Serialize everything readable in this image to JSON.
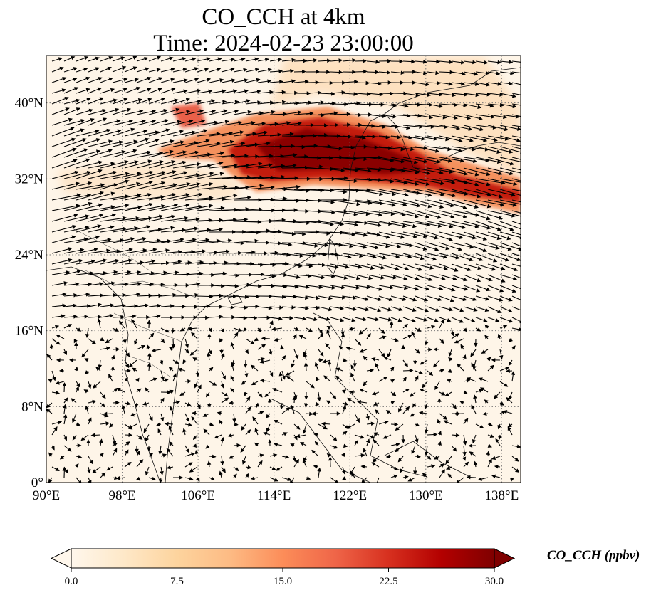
{
  "title": {
    "line1": "CO_CCH at 4km",
    "line2": "Time: 2024-02-23 23:00:00"
  },
  "map": {
    "lon_range": [
      90,
      140
    ],
    "lat_range": [
      0,
      45
    ],
    "lon_ticks": [
      {
        "value": 90,
        "label": "90°E"
      },
      {
        "value": 98,
        "label": "98°E"
      },
      {
        "value": 106,
        "label": "106°E"
      },
      {
        "value": 114,
        "label": "114°E"
      },
      {
        "value": 122,
        "label": "122°E"
      },
      {
        "value": 130,
        "label": "130°E"
      },
      {
        "value": 138,
        "label": "138°E"
      }
    ],
    "lat_ticks": [
      {
        "value": 0,
        "label": "0°"
      },
      {
        "value": 8,
        "label": "8°N"
      },
      {
        "value": 16,
        "label": "16°N"
      },
      {
        "value": 24,
        "label": "24°N"
      },
      {
        "value": 32,
        "label": "32°N"
      },
      {
        "value": 40,
        "label": "40°N"
      }
    ],
    "gridlines": "dotted",
    "field_variable": "CO_CCH",
    "wind_vectors": true
  },
  "colorbar": {
    "label": "CO_CCH (ppbv)",
    "min": 0.0,
    "max": 30.0,
    "extend": "both",
    "colormap": "OrRd",
    "colors": [
      "#fff7ec",
      "#fee8c8",
      "#fdd49e",
      "#fdbb84",
      "#fc8d59",
      "#ef6548",
      "#d7301f",
      "#b30000",
      "#7f0000"
    ],
    "ticks": [
      {
        "value": 0.0,
        "label": "0.0"
      },
      {
        "value": 7.5,
        "label": "7.5"
      },
      {
        "value": 15.0,
        "label": "15.0"
      },
      {
        "value": 22.5,
        "label": "22.5"
      },
      {
        "value": 30.0,
        "label": "30.0"
      }
    ]
  }
}
